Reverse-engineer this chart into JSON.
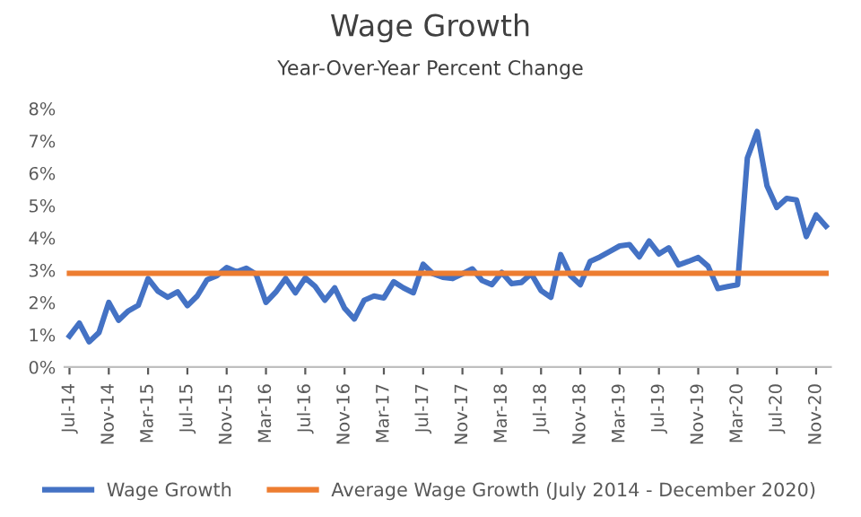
{
  "chart_data": {
    "type": "line",
    "title": "Wage Growth",
    "subtitle": "Year-Over-Year Percent Change",
    "categories": [
      "Jul-14",
      null,
      null,
      null,
      "Nov-14",
      null,
      null,
      null,
      "Mar-15",
      null,
      null,
      null,
      "Jul-15",
      null,
      null,
      null,
      "Nov-15",
      null,
      null,
      null,
      "Mar-16",
      null,
      null,
      null,
      "Jul-16",
      null,
      null,
      null,
      "Nov-16",
      null,
      null,
      null,
      "Mar-17",
      null,
      null,
      null,
      "Jul-17",
      null,
      null,
      null,
      "Nov-17",
      null,
      null,
      null,
      "Mar-18",
      null,
      null,
      null,
      "Jul-18",
      null,
      null,
      null,
      "Nov-18",
      null,
      null,
      null,
      "Mar-19",
      null,
      null,
      null,
      "Jul-19",
      null,
      null,
      null,
      "Nov-19",
      null,
      null,
      null,
      "Mar-20",
      null,
      null,
      null,
      "Jul-20",
      null,
      null,
      null,
      "Nov-20",
      null
    ],
    "series": [
      {
        "name": "Wage Growth",
        "color": "#4472c4",
        "values": [
          0.96,
          1.36,
          0.78,
          1.07,
          2.0,
          1.45,
          1.74,
          1.91,
          2.74,
          2.35,
          2.16,
          2.33,
          1.9,
          2.2,
          2.7,
          2.83,
          3.08,
          2.95,
          3.06,
          2.87,
          2.0,
          2.32,
          2.74,
          2.3,
          2.76,
          2.5,
          2.07,
          2.45,
          1.82,
          1.49,
          2.07,
          2.2,
          2.14,
          2.64,
          2.45,
          2.3,
          3.18,
          2.89,
          2.78,
          2.74,
          2.89,
          3.04,
          2.68,
          2.55,
          2.93,
          2.58,
          2.62,
          2.89,
          2.37,
          2.16,
          3.48,
          2.83,
          2.55,
          3.27,
          3.41,
          3.58,
          3.75,
          3.79,
          3.41,
          3.9,
          3.5,
          3.69,
          3.16,
          3.27,
          3.39,
          3.12,
          2.43,
          2.49,
          2.55,
          6.47,
          7.29,
          5.61,
          4.94,
          5.22,
          5.17,
          4.04,
          4.71,
          4.36
        ]
      },
      {
        "name": "Average Wage Growth (July 2014 - December 2020)",
        "color": "#ed7d31",
        "values": [
          2.9,
          2.9,
          2.9,
          2.9,
          2.9,
          2.9,
          2.9,
          2.9,
          2.9,
          2.9,
          2.9,
          2.9,
          2.9,
          2.9,
          2.9,
          2.9,
          2.9,
          2.9,
          2.9,
          2.9,
          2.9,
          2.9,
          2.9,
          2.9,
          2.9,
          2.9,
          2.9,
          2.9,
          2.9,
          2.9,
          2.9,
          2.9,
          2.9,
          2.9,
          2.9,
          2.9,
          2.9,
          2.9,
          2.9,
          2.9,
          2.9,
          2.9,
          2.9,
          2.9,
          2.9,
          2.9,
          2.9,
          2.9,
          2.9,
          2.9,
          2.9,
          2.9,
          2.9,
          2.9,
          2.9,
          2.9,
          2.9,
          2.9,
          2.9,
          2.9,
          2.9,
          2.9,
          2.9,
          2.9,
          2.9,
          2.9,
          2.9,
          2.9,
          2.9,
          2.9,
          2.9,
          2.9,
          2.9,
          2.9,
          2.9,
          2.9,
          2.9,
          2.9
        ]
      }
    ],
    "ylim": [
      0,
      8
    ],
    "yticks": [
      {
        "value": 0,
        "label": "0%"
      },
      {
        "value": 1,
        "label": "1%"
      },
      {
        "value": 2,
        "label": "2%"
      },
      {
        "value": 3,
        "label": "3%"
      },
      {
        "value": 4,
        "label": "4%"
      },
      {
        "value": 5,
        "label": "5%"
      },
      {
        "value": 6,
        "label": "6%"
      },
      {
        "value": 7,
        "label": "7%"
      },
      {
        "value": 8,
        "label": "8%"
      }
    ],
    "legend": "bottom",
    "grid": false,
    "marker": "none",
    "line_style": "solid"
  }
}
